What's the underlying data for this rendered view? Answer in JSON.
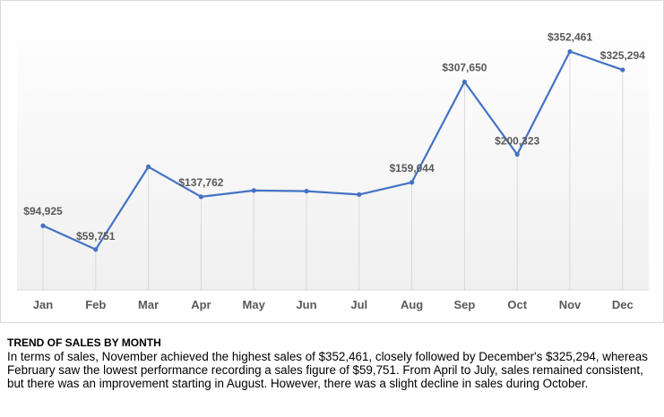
{
  "chart_data": {
    "type": "line",
    "categories": [
      "Jan",
      "Feb",
      "Mar",
      "Apr",
      "May",
      "Jun",
      "Jul",
      "Aug",
      "Sep",
      "Oct",
      "Nov",
      "Dec"
    ],
    "series": [
      {
        "values": [
          94925,
          59751,
          182000,
          137762,
          147000,
          146000,
          141000,
          159044,
          307650,
          200323,
          352461,
          325294
        ]
      }
    ],
    "data_labels": [
      "$94,925",
      "$59,751",
      "",
      "$137,762",
      "",
      "",
      "",
      "$159,044",
      "$307,650",
      "$200,323",
      "$352,461",
      "$325,294"
    ],
    "title": "",
    "xlabel": "",
    "ylabel": "",
    "ylim": [
      0,
      400000
    ],
    "grid": "vertical drop lines",
    "legend": "none",
    "line_color": "#4472c4",
    "label_color": "#595959"
  },
  "caption": {
    "title": "TREND OF SALES BY MONTH",
    "body": "In terms of sales, November achieved the highest sales of $352,461, closely followed by December's $325,294, whereas February saw the lowest performance recording a sales figure of $59,751. From April to July, sales remained consistent, but there was an improvement starting in August. However, there was a slight decline in sales during October."
  }
}
